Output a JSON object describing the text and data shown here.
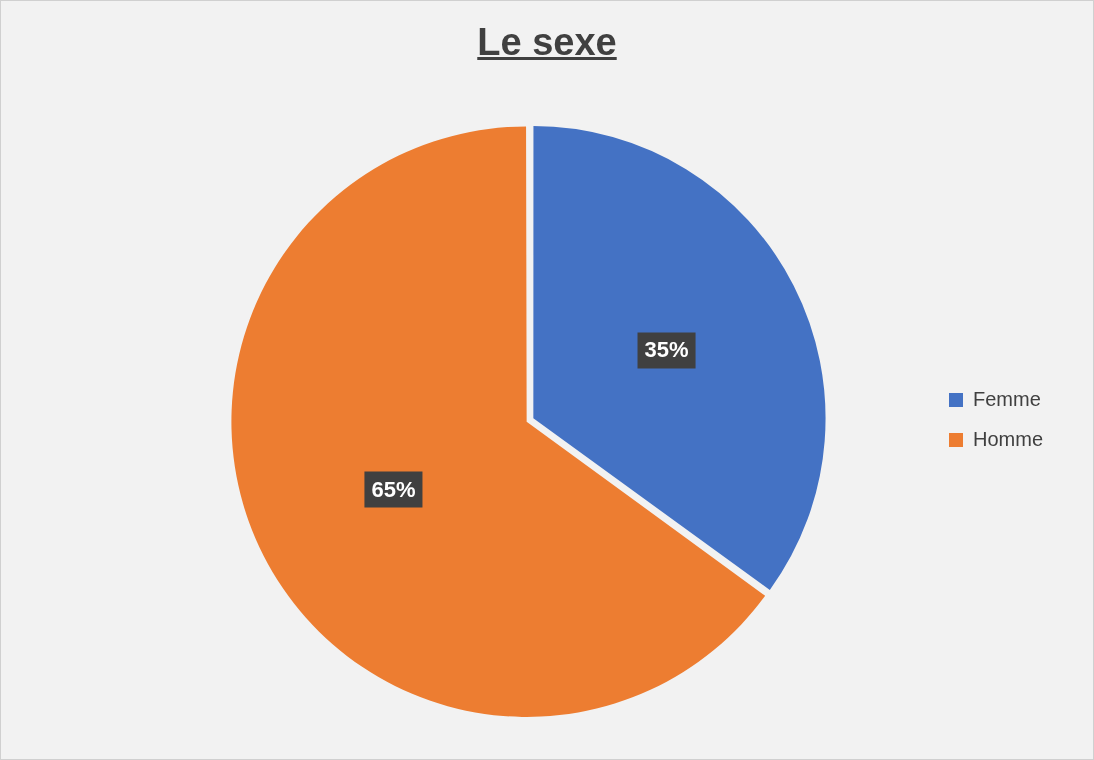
{
  "chart_data": {
    "type": "pie",
    "title": "Le sexe",
    "categories": [
      "Femme",
      "Homme"
    ],
    "values": [
      35,
      65
    ],
    "colors": [
      "#4472c4",
      "#ed7d31"
    ],
    "value_labels": [
      "35%",
      "65%"
    ],
    "legend": "right"
  }
}
